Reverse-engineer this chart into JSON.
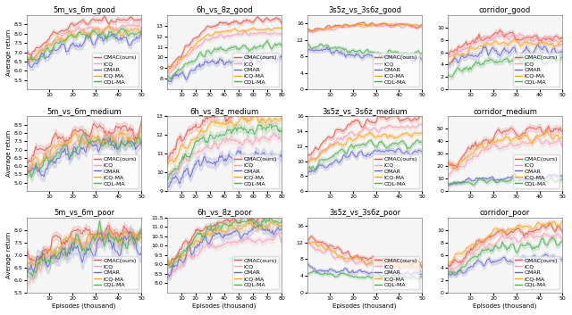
{
  "titles": [
    [
      "5m_vs_6m_good",
      "6h_vs_8z_good",
      "3s5z_vs_3s6z_good",
      "corridor_good"
    ],
    [
      "5m_vs_6m_medium",
      "6h_vs_8z_medium",
      "3s5z_vs_3s6z_medium",
      "corridor_medium"
    ],
    [
      "5m_vs_6m_poor",
      "6h_vs_8z_poor",
      "3s5z_vs_3s6z_poor",
      "corridor_poor"
    ]
  ],
  "algo_names": [
    "OMAC(ours)",
    "ICQ",
    "OMAR",
    "ICQ-MA",
    "CQL-MA"
  ],
  "algo_colors": [
    "#e8524a",
    "#f4a0b5",
    "#6666cc",
    "#f5a623",
    "#4caf50"
  ],
  "x_episodes": {
    "5m_vs_6m": [
      1,
      5,
      10,
      15,
      20,
      25,
      30,
      35,
      40,
      45,
      50
    ],
    "6h_vs_8z": [
      1,
      10,
      20,
      30,
      40,
      50,
      60,
      70,
      80
    ],
    "3s5z_vs_3s6z": [
      1,
      5,
      10,
      15,
      20,
      25,
      30,
      35,
      40,
      45,
      50
    ],
    "corridor": [
      1,
      10,
      20,
      30,
      40,
      50
    ]
  },
  "xlabels": {
    "5m_vs_6m": {
      "ticks": [
        10,
        20,
        30,
        40,
        50
      ],
      "label": "Episodes (thousand)"
    },
    "6h_vs_8z": {
      "ticks": [
        10,
        20,
        30,
        40,
        50,
        60,
        70,
        80
      ],
      "label": "Episodes (thousand)"
    },
    "3s5z_vs_3s6z": {
      "ticks": [
        10,
        20,
        30,
        40,
        50
      ],
      "label": "Episodes (thousand)"
    },
    "corridor": {
      "ticks": [
        10,
        20,
        30,
        40,
        50
      ],
      "label": "Episodes (thousand)"
    }
  },
  "ylabel": "Average return",
  "background_color": "#f5f5f5",
  "figure_bg": "#ffffff",
  "legend_fontsize": 4.5,
  "title_fontsize": 6,
  "axis_fontsize": 5,
  "tick_fontsize": 4.5
}
